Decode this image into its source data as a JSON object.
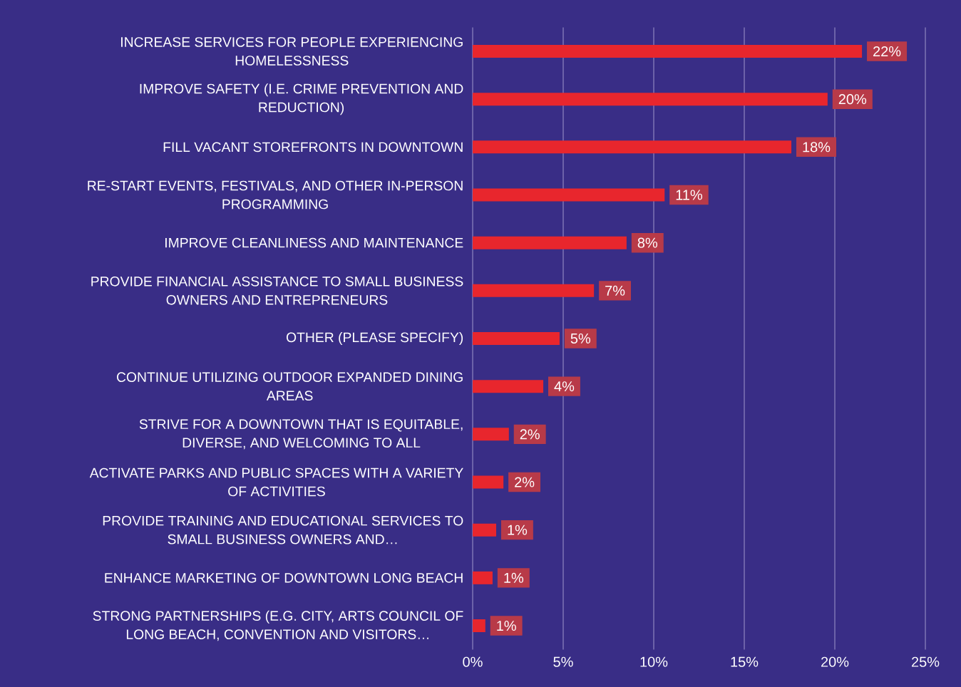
{
  "chart_data": {
    "type": "bar",
    "orientation": "horizontal",
    "categories": [
      "INCREASE SERVICES FOR PEOPLE EXPERIENCING HOMELESSNESS",
      "IMPROVE SAFETY (I.E. CRIME PREVENTION AND REDUCTION)",
      "FILL VACANT STOREFRONTS IN DOWNTOWN",
      "RE-START EVENTS, FESTIVALS, AND OTHER IN-PERSON PROGRAMMING",
      "IMPROVE CLEANLINESS AND MAINTENANCE",
      "PROVIDE FINANCIAL ASSISTANCE TO SMALL BUSINESS OWNERS AND ENTREPRENEURS",
      "OTHER (PLEASE SPECIFY)",
      "CONTINUE UTILIZING OUTDOOR EXPANDED DINING AREAS",
      "STRIVE FOR A DOWNTOWN THAT IS EQUITABLE, DIVERSE, AND WELCOMING TO ALL",
      "ACTIVATE PARKS AND PUBLIC SPACES WITH A VARIETY OF ACTIVITIES",
      "PROVIDE TRAINING AND EDUCATIONAL SERVICES TO SMALL BUSINESS OWNERS AND…",
      "ENHANCE MARKETING OF DOWNTOWN LONG BEACH",
      "STRONG PARTNERSHIPS (E.G. CITY, ARTS COUNCIL OF LONG BEACH, CONVENTION AND VISITORS…"
    ],
    "values": [
      21.5,
      19.6,
      17.6,
      10.6,
      8.5,
      6.7,
      4.8,
      3.9,
      2.0,
      1.7,
      1.3,
      1.1,
      0.7
    ],
    "value_labels": [
      "22%",
      "20%",
      "18%",
      "11%",
      "8%",
      "7%",
      "5%",
      "4%",
      "2%",
      "2%",
      "1%",
      "1%",
      "1%"
    ],
    "color": "#e8262d",
    "xlim": [
      0,
      25
    ],
    "xticks": [
      {
        "value": 0,
        "label": "0%"
      },
      {
        "value": 5,
        "label": "5%"
      },
      {
        "value": 10,
        "label": "10%"
      },
      {
        "value": 15,
        "label": "15%"
      },
      {
        "value": 20,
        "label": "20%"
      },
      {
        "value": 25,
        "label": "25%"
      }
    ],
    "grid": "x"
  }
}
